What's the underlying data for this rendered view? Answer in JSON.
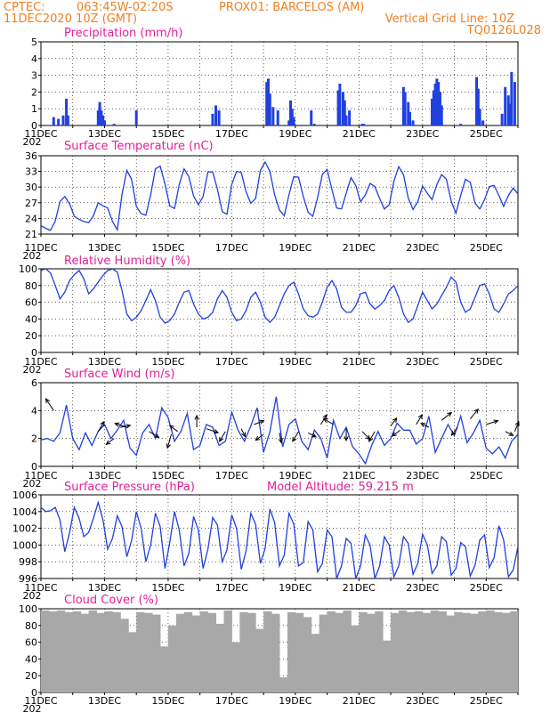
{
  "header": {
    "line1_left": "CPTEC:",
    "line1_coords": "063:45W-02:20S",
    "line1_station": "PROX01: BARCELOS (AM)",
    "line2_date": "11DEC2020 10Z (GMT)",
    "line2_grid": "Vertical Grid Line: 10Z",
    "line3_code": "TQ0126L028",
    "year_fragment": "202"
  },
  "colors": {
    "header": "#f08020",
    "panel_title": "#e0209a",
    "series": "#2040e0",
    "cloud": "#a8a8a8",
    "arrow": "#000000"
  },
  "x_axis": {
    "ticks": [
      "11DEC",
      "13DEC",
      "15DEC",
      "17DEC",
      "19DEC",
      "21DEC",
      "23DEC",
      "25DEC"
    ],
    "range_days": [
      0,
      15
    ],
    "vertical_grid_time": "10Z"
  },
  "chart_data": [
    {
      "id": "precip",
      "type": "bar",
      "title": "Precipitation (mm/h)",
      "ylim": [
        0,
        5
      ],
      "yticks": [
        "0",
        "1",
        "2",
        "3",
        "4",
        "5"
      ],
      "x_days": [
        0.4,
        0.55,
        0.7,
        0.8,
        0.85,
        1.8,
        1.85,
        1.9,
        1.95,
        2.0,
        2.3,
        3.0,
        5.4,
        5.5,
        5.6,
        7.1,
        7.15,
        7.2,
        7.3,
        7.45,
        7.8,
        7.85,
        7.9,
        7.95,
        8.5,
        8.6,
        9.35,
        9.4,
        9.5,
        9.55,
        9.6,
        9.7,
        10.1,
        10.15,
        11.4,
        11.45,
        11.55,
        11.6,
        11.7,
        12.3,
        12.35,
        12.4,
        12.45,
        12.5,
        12.55,
        12.6,
        13.2,
        13.7,
        13.75,
        13.8,
        13.9,
        14.5,
        14.6,
        14.7,
        14.75,
        14.8,
        14.9
      ],
      "values": [
        0.5,
        0.4,
        0.6,
        1.6,
        0.6,
        0.9,
        1.4,
        0.9,
        0.6,
        0.3,
        0.1,
        0.9,
        0.7,
        1.2,
        0.9,
        2.6,
        2.8,
        1.9,
        1.1,
        0.9,
        0.3,
        1.5,
        1.0,
        0.5,
        0.9,
        0.1,
        2.1,
        2.5,
        2.0,
        1.5,
        0.6,
        0.9,
        0.1,
        0.1,
        2.3,
        2.0,
        1.4,
        0.8,
        0.3,
        1.6,
        2.1,
        2.5,
        2.8,
        2.6,
        2.0,
        1.2,
        0.1,
        2.9,
        2.2,
        1.0,
        0.3,
        0.7,
        2.3,
        1.8,
        1.3,
        3.2,
        2.6
      ],
      "grid": "dotted"
    },
    {
      "id": "temp",
      "type": "line",
      "title": "Surface Temperature (nC)",
      "ylim": [
        21,
        36
      ],
      "yticks": [
        "21",
        "24",
        "27",
        "30",
        "33",
        "36"
      ],
      "x_days": [
        0,
        0.15,
        0.3,
        0.45,
        0.6,
        0.75,
        0.9,
        1.05,
        1.2,
        1.35,
        1.5,
        1.65,
        1.8,
        1.95,
        2.1,
        2.25,
        2.4,
        2.55,
        2.7,
        2.85,
        3.0,
        3.15,
        3.3,
        3.45,
        3.6,
        3.75,
        3.9,
        4.05,
        4.2,
        4.35,
        4.5,
        4.65,
        4.8,
        4.95,
        5.1,
        5.25,
        5.4,
        5.55,
        5.7,
        5.85,
        6.0,
        6.15,
        6.3,
        6.45,
        6.6,
        6.75,
        6.9,
        7.05,
        7.2,
        7.35,
        7.5,
        7.65,
        7.8,
        7.95,
        8.1,
        8.25,
        8.4,
        8.55,
        8.7,
        8.85,
        9.0,
        9.15,
        9.3,
        9.45,
        9.6,
        9.75,
        9.9,
        10.05,
        10.2,
        10.35,
        10.5,
        10.65,
        10.8,
        10.95,
        11.1,
        11.25,
        11.4,
        11.55,
        11.7,
        11.85,
        12.0,
        12.15,
        12.3,
        12.45,
        12.6,
        12.75,
        12.9,
        13.05,
        13.2,
        13.35,
        13.5,
        13.65,
        13.8,
        13.95,
        14.1,
        14.25,
        14.4,
        14.55,
        14.7,
        14.85,
        15.0
      ],
      "values": [
        22.6,
        22.1,
        21.7,
        23.5,
        27.2,
        28.2,
        26.8,
        24.4,
        23.8,
        23.4,
        23.2,
        24.5,
        27.0,
        26.4,
        26.0,
        23.4,
        21.8,
        28.6,
        33.2,
        31.5,
        26.3,
        24.9,
        24.6,
        28.5,
        33.5,
        34.0,
        30.6,
        26.4,
        25.9,
        30.5,
        33.5,
        32.0,
        28.3,
        26.6,
        28.2,
        32.9,
        32.9,
        29.6,
        25.3,
        24.8,
        30.5,
        33.0,
        32.8,
        29.1,
        26.9,
        27.8,
        33.2,
        34.8,
        33.0,
        28.5,
        25.6,
        24.5,
        28.5,
        32.0,
        31.9,
        28.2,
        25.2,
        24.4,
        28.0,
        32.4,
        33.4,
        29.5,
        26.0,
        25.8,
        28.8,
        31.8,
        30.3,
        27.2,
        28.5,
        30.7,
        30.1,
        27.8,
        25.8,
        26.6,
        31.1,
        33.9,
        32.4,
        27.9,
        25.7,
        27.2,
        30.2,
        28.8,
        27.6,
        30.5,
        32.4,
        31.5,
        27.3,
        25.0,
        28.4,
        31.5,
        30.9,
        26.9,
        25.8,
        27.6,
        30.1,
        30.3,
        28.4,
        26.3,
        28.4,
        29.8,
        28.7
      ],
      "grid": "dotted"
    },
    {
      "id": "rh",
      "type": "line",
      "title": "Relative Humidity (%)",
      "ylim": [
        0,
        100
      ],
      "yticks": [
        "0",
        "20",
        "40",
        "60",
        "80",
        "100"
      ],
      "x_days": [
        0,
        0.15,
        0.3,
        0.45,
        0.6,
        0.75,
        0.9,
        1.05,
        1.2,
        1.35,
        1.5,
        1.65,
        1.8,
        1.95,
        2.1,
        2.25,
        2.4,
        2.55,
        2.7,
        2.85,
        3.0,
        3.15,
        3.3,
        3.45,
        3.6,
        3.75,
        3.9,
        4.05,
        4.2,
        4.35,
        4.5,
        4.65,
        4.8,
        4.95,
        5.1,
        5.25,
        5.4,
        5.55,
        5.7,
        5.85,
        6.0,
        6.15,
        6.3,
        6.45,
        6.6,
        6.75,
        6.9,
        7.05,
        7.2,
        7.35,
        7.5,
        7.65,
        7.8,
        7.95,
        8.1,
        8.25,
        8.4,
        8.55,
        8.7,
        8.85,
        9.0,
        9.15,
        9.3,
        9.45,
        9.6,
        9.75,
        9.9,
        10.05,
        10.2,
        10.35,
        10.5,
        10.65,
        10.8,
        10.95,
        11.1,
        11.25,
        11.4,
        11.55,
        11.7,
        11.85,
        12.0,
        12.15,
        12.3,
        12.45,
        12.6,
        12.75,
        12.9,
        13.05,
        13.2,
        13.35,
        13.5,
        13.65,
        13.8,
        13.95,
        14.1,
        14.25,
        14.4,
        14.55,
        14.7,
        14.85,
        15.0
      ],
      "values": [
        98,
        100,
        95,
        80,
        64,
        72,
        86,
        93,
        98,
        88,
        70,
        76,
        84,
        92,
        98,
        100,
        96,
        74,
        46,
        38,
        42,
        50,
        62,
        75,
        62,
        42,
        35,
        38,
        46,
        60,
        72,
        74,
        58,
        46,
        40,
        42,
        48,
        64,
        74,
        66,
        48,
        38,
        40,
        50,
        66,
        72,
        60,
        42,
        36,
        42,
        56,
        70,
        80,
        84,
        70,
        52,
        44,
        42,
        46,
        60,
        78,
        86,
        76,
        54,
        48,
        48,
        56,
        70,
        72,
        58,
        52,
        56,
        62,
        74,
        80,
        66,
        46,
        36,
        40,
        56,
        72,
        62,
        52,
        58,
        68,
        78,
        90,
        84,
        60,
        48,
        52,
        66,
        80,
        82,
        70,
        52,
        48,
        58,
        70,
        74,
        80
      ],
      "grid": "dotted"
    },
    {
      "id": "wind",
      "type": "line",
      "title": "Surface Wind (m/s)",
      "ylim": [
        0,
        6
      ],
      "yticks": [
        "0",
        "2",
        "4",
        "6"
      ],
      "x_days": [
        0,
        0.2,
        0.4,
        0.6,
        0.8,
        1.0,
        1.2,
        1.4,
        1.6,
        1.8,
        2.0,
        2.2,
        2.4,
        2.6,
        2.8,
        3.0,
        3.2,
        3.4,
        3.6,
        3.8,
        4.0,
        4.2,
        4.4,
        4.6,
        4.8,
        5.0,
        5.2,
        5.4,
        5.6,
        5.8,
        6.0,
        6.2,
        6.4,
        6.6,
        6.8,
        7.0,
        7.2,
        7.4,
        7.6,
        7.8,
        8.0,
        8.2,
        8.4,
        8.6,
        8.8,
        9.0,
        9.2,
        9.4,
        9.6,
        9.8,
        10.0,
        10.2,
        10.4,
        10.6,
        10.8,
        11.0,
        11.2,
        11.4,
        11.6,
        11.8,
        12.0,
        12.2,
        12.4,
        12.6,
        12.8,
        13.0,
        13.2,
        13.4,
        13.6,
        13.8,
        14.0,
        14.2,
        14.4,
        14.6,
        14.8,
        15.0
      ],
      "values": [
        1.9,
        2.0,
        1.8,
        2.4,
        4.4,
        2.0,
        1.2,
        2.4,
        1.5,
        2.5,
        3.0,
        2.0,
        2.6,
        3.3,
        1.3,
        0.8,
        2.4,
        3.0,
        2.0,
        4.2,
        3.5,
        1.8,
        2.5,
        3.8,
        1.2,
        1.5,
        3.0,
        2.8,
        1.5,
        1.8,
        3.9,
        2.6,
        1.8,
        2.9,
        4.2,
        1.0,
        2.5,
        5.0,
        1.4,
        3.0,
        3.4,
        1.8,
        1.2,
        2.6,
        2.0,
        0.6,
        3.3,
        2.0,
        2.8,
        1.4,
        0.9,
        0.2,
        1.5,
        2.5,
        1.5,
        2.0,
        3.1,
        2.6,
        2.6,
        1.6,
        2.0,
        3.6,
        1.0,
        2.0,
        3.0,
        2.2,
        3.6,
        1.7,
        2.4,
        3.3,
        1.3,
        0.9,
        1.4,
        0.6,
        1.8,
        2.3
      ],
      "arrows_x_days": [
        0.4,
        1.8,
        2.3,
        2.5,
        2.7,
        3.4,
        4.1,
        4.3,
        4.9,
        5.2,
        5.8,
        6.3,
        6.7,
        7.0,
        7.5,
        8.1,
        8.4,
        8.8,
        9.2,
        9.6,
        10.1,
        10.5,
        11.0,
        11.3,
        11.8,
        12.2,
        12.6,
        13.1,
        13.5,
        14.0,
        14.6,
        14.9
      ],
      "arrows_y": [
        4.0,
        2.5,
        2.0,
        2.8,
        2.8,
        2.5,
        2.3,
        2.5,
        2.8,
        2.7,
        2.5,
        2.7,
        3.0,
        2.3,
        2.4,
        2.5,
        2.4,
        3.0,
        3.0,
        2.7,
        2.5,
        2.5,
        2.9,
        2.6,
        3.0,
        2.8,
        3.3,
        2.8,
        3.4,
        3.0,
        2.5,
        2.5
      ],
      "arrows_dir": [
        [
          -0.4,
          0.6
        ],
        [
          0.3,
          0.5
        ],
        [
          -0.4,
          -0.3
        ],
        [
          0.5,
          0.1
        ],
        [
          -0.6,
          0.2
        ],
        [
          0.5,
          -0.3
        ],
        [
          -0.2,
          -0.7
        ],
        [
          -0.4,
          0.3
        ],
        [
          0.0,
          0.6
        ],
        [
          0.6,
          -0.2
        ],
        [
          -0.3,
          -0.5
        ],
        [
          0.2,
          -0.4
        ],
        [
          0.5,
          0.2
        ],
        [
          -0.4,
          -0.3
        ],
        [
          0.1,
          -0.5
        ],
        [
          -0.3,
          -0.5
        ],
        [
          0.4,
          -0.2
        ],
        [
          0.3,
          0.5
        ],
        [
          -0.5,
          0.3
        ],
        [
          0.0,
          -0.6
        ],
        [
          0.4,
          -0.4
        ],
        [
          -0.3,
          -0.5
        ],
        [
          0.3,
          0.4
        ],
        [
          -0.4,
          -0.3
        ],
        [
          0.3,
          0.5
        ],
        [
          -0.4,
          0.2
        ],
        [
          0.5,
          0.4
        ],
        [
          -0.3,
          -0.4
        ],
        [
          0.4,
          0.5
        ],
        [
          0.6,
          0.2
        ],
        [
          0.4,
          -0.2
        ],
        [
          0.2,
          0.5
        ]
      ],
      "grid": "dotted"
    },
    {
      "id": "pres",
      "type": "line",
      "title": "Surface Pressure (hPa)",
      "subtitle": "Model Altitude: 59.215  m",
      "ylim": [
        996,
        1006
      ],
      "yticks": [
        "996",
        "998",
        "1000",
        "1002",
        "1004",
        "1006"
      ],
      "x_days": [
        0,
        0.15,
        0.3,
        0.45,
        0.6,
        0.75,
        0.9,
        1.05,
        1.2,
        1.35,
        1.5,
        1.65,
        1.8,
        1.95,
        2.1,
        2.25,
        2.4,
        2.55,
        2.7,
        2.85,
        3.0,
        3.15,
        3.3,
        3.45,
        3.6,
        3.75,
        3.9,
        4.05,
        4.2,
        4.35,
        4.5,
        4.65,
        4.8,
        4.95,
        5.1,
        5.25,
        5.4,
        5.55,
        5.7,
        5.85,
        6.0,
        6.15,
        6.3,
        6.45,
        6.6,
        6.75,
        6.9,
        7.05,
        7.2,
        7.35,
        7.5,
        7.65,
        7.8,
        7.95,
        8.1,
        8.25,
        8.4,
        8.55,
        8.7,
        8.85,
        9.0,
        9.15,
        9.3,
        9.45,
        9.6,
        9.75,
        9.9,
        10.05,
        10.2,
        10.35,
        10.5,
        10.65,
        10.8,
        10.95,
        11.1,
        11.25,
        11.4,
        11.55,
        11.7,
        11.85,
        12.0,
        12.15,
        12.3,
        12.45,
        12.6,
        12.75,
        12.9,
        13.05,
        13.2,
        13.35,
        13.5,
        13.65,
        13.8,
        13.95,
        14.1,
        14.25,
        14.4,
        14.55,
        14.7,
        14.85,
        15.0
      ],
      "values": [
        1004.5,
        1004.0,
        1004.1,
        1004.5,
        1003.0,
        999.2,
        1001.5,
        1004.5,
        1003.2,
        1001.0,
        1001.5,
        1003.2,
        1005.1,
        1003.0,
        999.5,
        1000.8,
        1003.5,
        1002.2,
        998.6,
        1000.5,
        1004.0,
        1002.0,
        998.0,
        1000.0,
        1003.8,
        1002.2,
        997.2,
        1000.3,
        1004.0,
        1001.8,
        997.5,
        999.0,
        1003.4,
        1001.8,
        997.2,
        999.5,
        1003.3,
        1002.4,
        998.0,
        999.4,
        1003.6,
        1002.0,
        997.1,
        999.3,
        1003.8,
        1002.5,
        997.8,
        999.6,
        1004.3,
        1002.7,
        997.5,
        998.8,
        1003.8,
        1002.5,
        997.5,
        997.9,
        1002.8,
        1001.8,
        996.8,
        997.8,
        1001.8,
        1001.0,
        996.0,
        997.5,
        1000.8,
        1000.2,
        996.0,
        997.5,
        1001.2,
        1000.0,
        996.0,
        997.5,
        1001.0,
        1000.0,
        996.2,
        997.5,
        1001.0,
        1000.2,
        996.5,
        997.8,
        1001.3,
        1000.0,
        996.6,
        997.5,
        1001.0,
        1000.4,
        996.4,
        997.2,
        1000.3,
        999.8,
        996.3,
        997.6,
        1000.6,
        1001.2,
        997.3,
        998.5,
        1002.3,
        1000.6,
        996.2,
        997.0,
        999.8
      ],
      "grid": "dotted"
    },
    {
      "id": "cloud",
      "type": "area",
      "title": "Cloud Cover (%)",
      "ylim": [
        0,
        100
      ],
      "yticks": [
        "0",
        "20",
        "40",
        "60",
        "80",
        "100"
      ],
      "x_days": [
        0,
        0.25,
        0.5,
        0.75,
        1.0,
        1.25,
        1.5,
        1.75,
        2.0,
        2.25,
        2.5,
        2.75,
        3.0,
        3.25,
        3.5,
        3.75,
        4.0,
        4.25,
        4.5,
        4.75,
        5.0,
        5.25,
        5.5,
        5.75,
        6.0,
        6.25,
        6.5,
        6.75,
        7.0,
        7.25,
        7.5,
        7.75,
        8.0,
        8.25,
        8.5,
        8.75,
        9.0,
        9.25,
        9.5,
        9.75,
        10.0,
        10.25,
        10.5,
        10.75,
        11.0,
        11.25,
        11.5,
        11.75,
        12.0,
        12.25,
        12.5,
        12.75,
        13.0,
        13.25,
        13.5,
        13.75,
        14.0,
        14.25,
        14.5,
        14.75,
        15.0
      ],
      "values": [
        98,
        97,
        98,
        96,
        97,
        94,
        98,
        95,
        97,
        96,
        88,
        72,
        96,
        95,
        93,
        55,
        80,
        94,
        96,
        92,
        97,
        95,
        82,
        98,
        60,
        96,
        95,
        76,
        97,
        94,
        18,
        96,
        95,
        90,
        70,
        93,
        97,
        95,
        98,
        80,
        96,
        94,
        97,
        62,
        95,
        98,
        96,
        97,
        95,
        98,
        97,
        92,
        96,
        95,
        94,
        97,
        98,
        96,
        95,
        97,
        96
      ],
      "grid": "dotted"
    }
  ]
}
